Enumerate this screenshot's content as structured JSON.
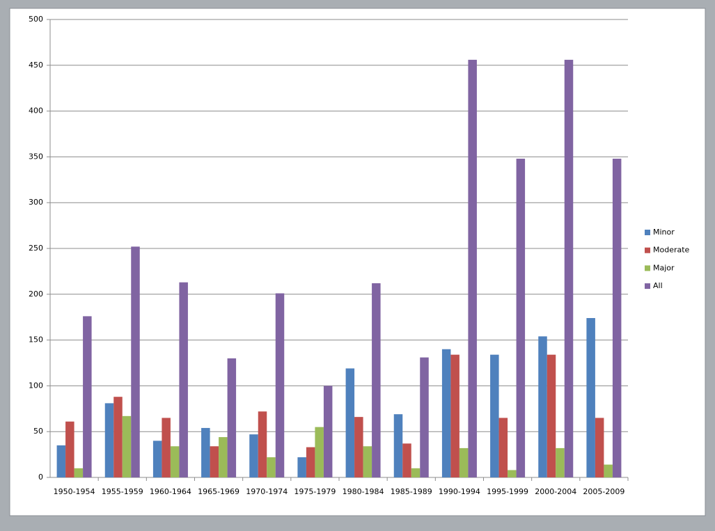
{
  "chart_data": {
    "type": "bar",
    "categories": [
      "1950-1954",
      "1955-1959",
      "1960-1964",
      "1965-1969",
      "1970-1974",
      "1975-1979",
      "1980-1984",
      "1985-1989",
      "1990-1994",
      "1995-1999",
      "2000-2004",
      "2005-2009"
    ],
    "series": [
      {
        "name": "Minor",
        "color": "#4f81bd",
        "values": [
          35,
          81,
          40,
          54,
          47,
          22,
          119,
          69,
          140,
          134,
          154,
          174
        ]
      },
      {
        "name": "Moderate",
        "color": "#c0504d",
        "values": [
          61,
          88,
          65,
          34,
          72,
          33,
          66,
          37,
          134,
          65,
          134,
          65
        ]
      },
      {
        "name": "Major",
        "color": "#9bbb59",
        "values": [
          10,
          67,
          34,
          44,
          22,
          55,
          34,
          10,
          32,
          8,
          32,
          14
        ]
      },
      {
        "name": "All",
        "color": "#8064a2",
        "values": [
          176,
          252,
          213,
          130,
          201,
          100,
          212,
          131,
          456,
          348,
          456,
          348
        ]
      }
    ],
    "ylim": [
      0,
      500
    ],
    "yticks": [
      0,
      50,
      100,
      150,
      200,
      250,
      300,
      350,
      400,
      450,
      500
    ],
    "grid": true,
    "legend": "right"
  }
}
